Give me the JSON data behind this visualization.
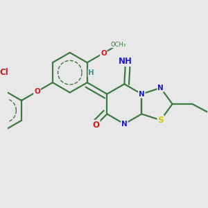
{
  "background_color": "#e8e8e8",
  "bond_color": "#3d7a3d",
  "bond_width": 1.6,
  "atom_colors": {
    "N": "#1a1acc",
    "O": "#cc1a1a",
    "S": "#cccc00",
    "Cl": "#cc1a1a",
    "H": "#4a8a8a"
  },
  "font_size": 8.5
}
